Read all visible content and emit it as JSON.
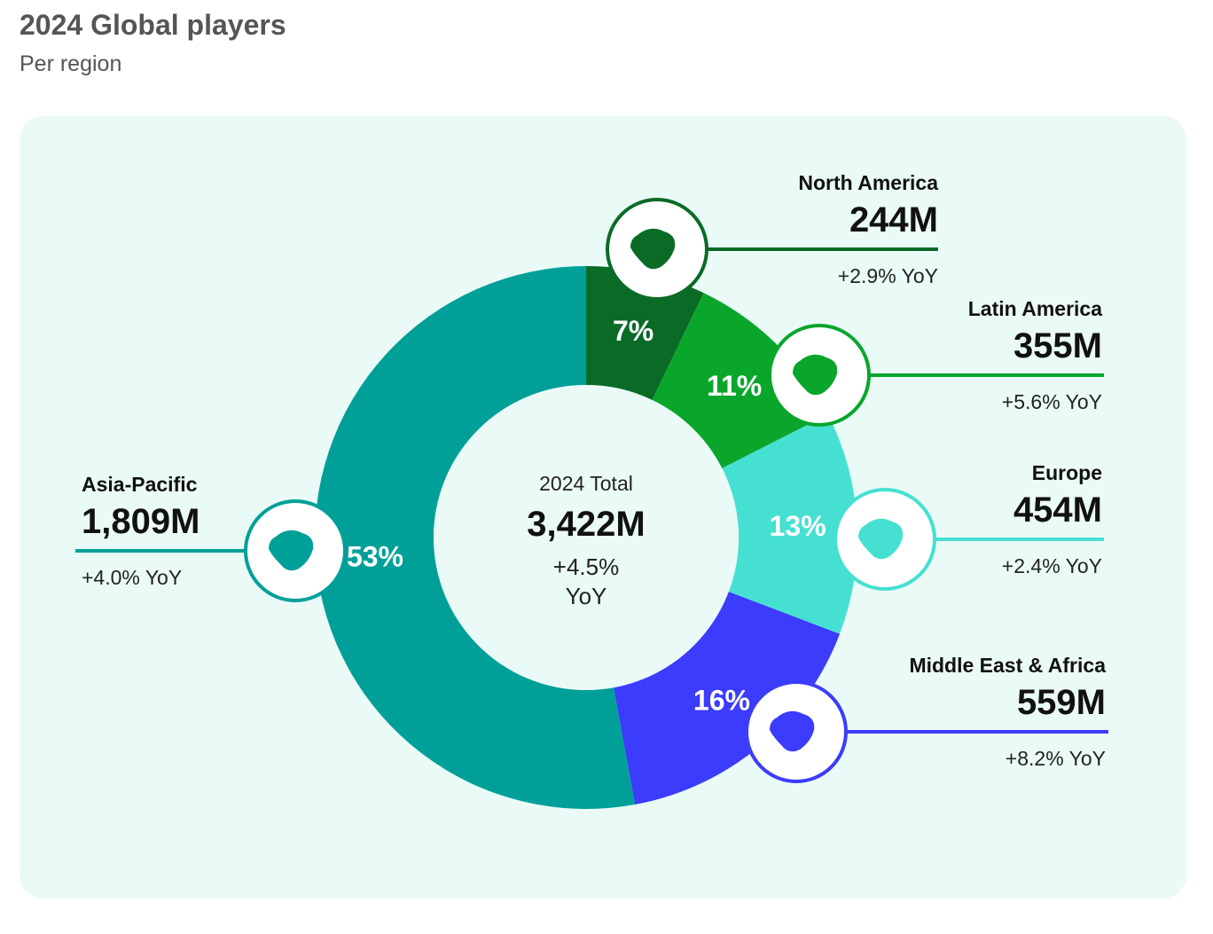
{
  "title": "2024 Global players",
  "subtitle": "Per region",
  "chart_data": {
    "type": "pie",
    "title": "2024 Global players",
    "subtitle": "Per region",
    "center": {
      "label": "2024 Total",
      "value": "3,422M",
      "yoy": "+4.5%",
      "yoy_unit": "YoY"
    },
    "slices": [
      {
        "name": "North America",
        "value": 244,
        "display": "244M",
        "percent": 7,
        "percent_label": "7%",
        "yoy": "+2.9% YoY",
        "color": "#0a6b27",
        "icon": "north-america-map-icon"
      },
      {
        "name": "Latin America",
        "value": 355,
        "display": "355M",
        "percent": 11,
        "percent_label": "11%",
        "yoy": "+5.6% YoY",
        "color": "#0aa62c",
        "icon": "latin-america-map-icon"
      },
      {
        "name": "Europe",
        "value": 454,
        "display": "454M",
        "percent": 13,
        "percent_label": "13%",
        "yoy": "+2.4% YoY",
        "color": "#45e0d2",
        "icon": "europe-map-icon"
      },
      {
        "name": "Middle East & Africa",
        "value": 559,
        "display": "559M",
        "percent": 16,
        "percent_label": "16%",
        "yoy": "+8.2% YoY",
        "color": "#3b3cfc",
        "icon": "africa-map-icon"
      },
      {
        "name": "Asia-Pacific",
        "value": 1809,
        "display": "1,809M",
        "percent": 53,
        "percent_label": "53%",
        "yoy": "+4.0% YoY",
        "color": "#00a099",
        "icon": "asia-pacific-map-icon"
      }
    ]
  }
}
